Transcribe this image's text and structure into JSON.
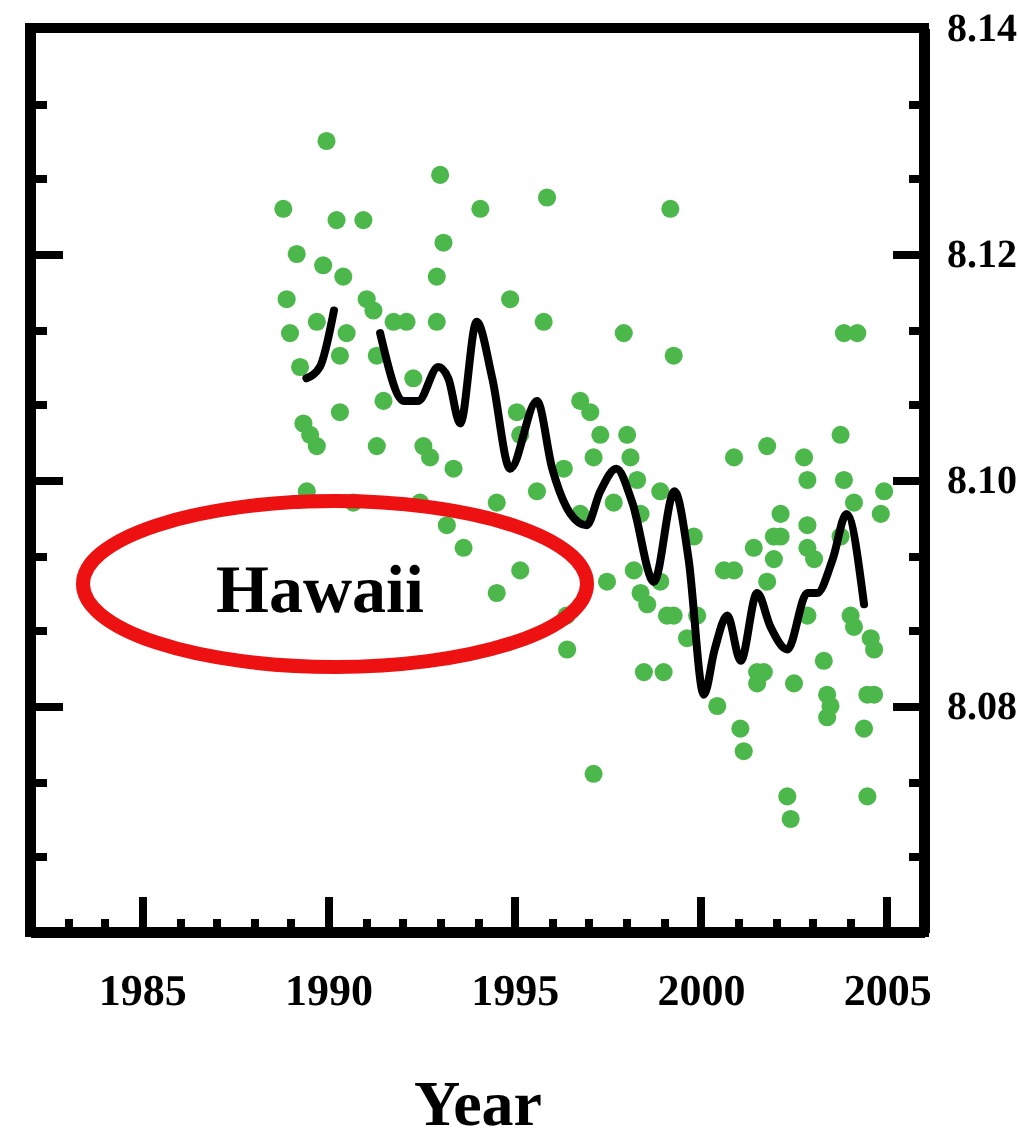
{
  "chart_data": {
    "type": "scatter",
    "xlabel": "Year",
    "annotations": [
      "Hawaii"
    ],
    "xlim": [
      1982,
      2006
    ],
    "xticks": [
      {
        "value": 1983,
        "label": null
      },
      {
        "value": 1984,
        "label": null
      },
      1985,
      {
        "value": 1986,
        "label": null
      },
      {
        "value": 1987,
        "label": null
      },
      {
        "value": 1988,
        "label": null
      },
      {
        "value": 1989,
        "label": null
      },
      1990,
      {
        "value": 1991,
        "label": null
      },
      {
        "value": 1992,
        "label": null
      },
      {
        "value": 1993,
        "label": null
      },
      {
        "value": 1994,
        "label": null
      },
      1995,
      {
        "value": 1996,
        "label": null
      },
      {
        "value": 1997,
        "label": null
      },
      {
        "value": 1998,
        "label": null
      },
      {
        "value": 1999,
        "label": null
      },
      2000,
      {
        "value": 2001,
        "label": null
      },
      {
        "value": 2002,
        "label": null
      },
      {
        "value": 2003,
        "label": null
      },
      {
        "value": 2004,
        "label": null
      },
      2005
    ],
    "ylim": [
      8.06,
      8.14
    ],
    "yticks": [
      {
        "value": 8.0667,
        "label": null
      },
      {
        "value": 8.0733,
        "label": null
      },
      8.08,
      {
        "value": 8.0867,
        "label": null
      },
      {
        "value": 8.0933,
        "label": null
      },
      {
        "value": 8.1,
        "label": "8.10"
      },
      {
        "value": 8.1067,
        "label": null
      },
      {
        "value": 8.1133,
        "label": null
      },
      8.12,
      {
        "value": 8.1267,
        "label": null
      },
      {
        "value": 8.1333,
        "label": null
      },
      8.14
    ],
    "series": [
      {
        "color": "#4cb84c",
        "marker": "circle",
        "x": [
          1989.96,
          1993.01,
          1988.8,
          1990.23,
          1990.95,
          1994.09,
          1995.88,
          1999.19,
          1989.16,
          1989.87,
          1990.41,
          1993.1,
          1992.92,
          1988.89,
          1991.04,
          1991.22,
          1994.89,
          1988.98,
          1989.7,
          1990.5,
          1991.76,
          1992.11,
          1992.92,
          1995.79,
          1997.94,
          1999.28,
          2003.85,
          2004.21,
          1989.25,
          1990.32,
          1991.31,
          1992.29,
          1991.49,
          1990.32,
          1989.34,
          1989.52,
          1989.7,
          1991.31,
          1992.56,
          1993.37,
          1996.77,
          1997.04,
          1997.31,
          1997.13,
          1998.03,
          1995.07,
          1995.16,
          1994.53,
          1995.61,
          1996.33,
          2000.9,
          2001.79,
          2002.78,
          2002.87,
          2003.76,
          2003.85,
          2004.93,
          2004.84,
          1998.92,
          1998.39,
          1999.82,
          2002.15,
          2001.97,
          2002.87,
          2003.05,
          2001.43,
          2000.63,
          2000.9,
          1997.49,
          1998.21,
          1998.92,
          1998.39,
          1999.28,
          1999.91,
          2001.79,
          2002.87,
          2004.03,
          2004.57,
          2004.66,
          1993.19,
          1993.64,
          1995.16,
          1994.53,
          1996.42,
          1998.48,
          1999.01,
          2000.45,
          2001.07,
          2001.16,
          2001.52,
          2002.51,
          2003.31,
          2003.4,
          2003.49,
          2004.48,
          2004.39,
          1997.13,
          2002.33,
          2002.42,
          2004.48,
          1992.47,
          1989.43,
          1990.68,
          1997.67,
          1996.77,
          1999.64,
          1998.3,
          1998.12,
          2004.12,
          1998.57,
          1999.1,
          2001.97,
          2002.15,
          2002.87,
          2003.76,
          2001.52,
          2001.7,
          2003.4,
          2004.66,
          2004.12,
          1996.4,
          1992.74
        ],
        "values": [
          8.13,
          8.127,
          8.124,
          8.123,
          8.123,
          8.124,
          8.125,
          8.124,
          8.12,
          8.119,
          8.118,
          8.121,
          8.118,
          8.116,
          8.116,
          8.115,
          8.116,
          8.113,
          8.114,
          8.113,
          8.114,
          8.114,
          8.114,
          8.114,
          8.113,
          8.111,
          8.113,
          8.113,
          8.11,
          8.111,
          8.111,
          8.109,
          8.107,
          8.106,
          8.105,
          8.104,
          8.103,
          8.103,
          8.103,
          8.101,
          8.107,
          8.106,
          8.104,
          8.102,
          8.104,
          8.106,
          8.104,
          8.098,
          8.099,
          8.101,
          8.102,
          8.103,
          8.102,
          8.1,
          8.104,
          8.1,
          8.099,
          8.097,
          8.099,
          8.097,
          8.095,
          8.097,
          8.095,
          8.096,
          8.093,
          8.094,
          8.092,
          8.092,
          8.091,
          8.092,
          8.091,
          8.09,
          8.088,
          8.088,
          8.091,
          8.088,
          8.088,
          8.086,
          8.085,
          8.096,
          8.094,
          8.092,
          8.09,
          8.085,
          8.083,
          8.083,
          8.08,
          8.078,
          8.076,
          8.082,
          8.082,
          8.084,
          8.081,
          8.08,
          8.081,
          8.078,
          8.074,
          8.072,
          8.07,
          8.072,
          8.098,
          8.099,
          8.098,
          8.098,
          8.097,
          8.086,
          8.1,
          8.102,
          8.098,
          8.089,
          8.088,
          8.093,
          8.095,
          8.094,
          8.095,
          8.083,
          8.083,
          8.079,
          8.081,
          8.087,
          8.088,
          8.102
        ]
      },
      {
        "type": "line",
        "color": "#000000",
        "x": [
          1989.42,
          1989.78,
          1990.16,
          1990.8,
          1991.4,
          1992.04,
          1992.42,
          1992.96,
          1993.23,
          1993.55,
          1993.99,
          1994.41,
          1994.89,
          1995.61,
          1996.02,
          1996.51,
          1996.94,
          1997.31,
          1997.74,
          1998.17,
          1998.75,
          1999.3,
          1999.68,
          2000.09,
          2000.38,
          2000.72,
          2001.08,
          2001.52,
          2001.88,
          2002.33,
          2002.87,
          2003.13,
          2003.55,
          2003.92,
          2004.39
        ],
        "values": [
          8.109,
          8.11,
          8.115,
          null,
          8.113,
          8.107,
          8.107,
          8.11,
          8.109,
          8.105,
          8.114,
          8.109,
          8.101,
          8.107,
          8.101,
          8.097,
          8.096,
          8.099,
          8.101,
          8.098,
          8.091,
          8.099,
          8.093,
          8.081,
          8.085,
          8.088,
          8.084,
          8.09,
          8.087,
          8.085,
          8.09,
          8.09,
          8.093,
          8.097,
          8.089
        ]
      }
    ]
  }
}
